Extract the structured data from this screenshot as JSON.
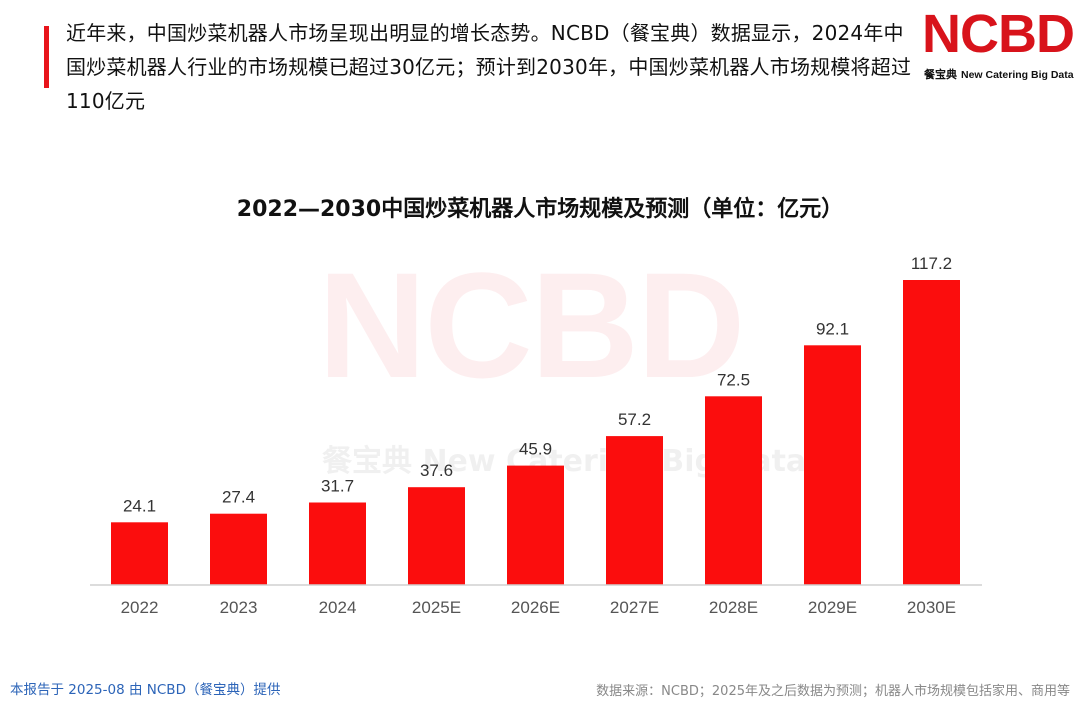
{
  "intro_text": "近年来，中国炒菜机器人市场呈现出明显的增长态势。NCBD（餐宝典）数据显示，2024年中国炒菜机器人行业的市场规模已超过30亿元；预计到2030年，中国炒菜机器人市场规模将超过110亿元",
  "logo": {
    "mark": "NCBD",
    "cn": "餐宝典",
    "en": "New Catering Big Data"
  },
  "watermark": {
    "mark": "NCBD",
    "sub": "餐宝典 New Catering Big Data"
  },
  "colors": {
    "bar": "#fb0d0d",
    "accent": "#e8141b",
    "axis": "#d0d0d0",
    "tick_text": "#555555",
    "value_text": "#333333"
  },
  "chart_data": {
    "type": "bar",
    "title": "2022—2030中国炒菜机器人市场规模及预测（单位：亿元）",
    "xlabel": "",
    "ylabel": "",
    "categories": [
      "2022",
      "2023",
      "2024",
      "2025E",
      "2026E",
      "2027E",
      "2028E",
      "2029E",
      "2030E"
    ],
    "values": [
      24.1,
      27.4,
      31.7,
      37.6,
      45.9,
      57.2,
      72.5,
      92.1,
      117.2
    ],
    "value_labels": [
      "24.1",
      "27.4",
      "31.7",
      "37.6",
      "45.9",
      "57.2",
      "72.5",
      "92.1",
      "117.2"
    ],
    "ylim": [
      0,
      120
    ],
    "grid": false,
    "legend": "none"
  },
  "footer": {
    "left": "本报告于 2025-08 由 NCBD（餐宝典）提供",
    "right": "数据来源：NCBD；2025年及之后数据为预测；机器人市场规模包括家用、商用等"
  }
}
